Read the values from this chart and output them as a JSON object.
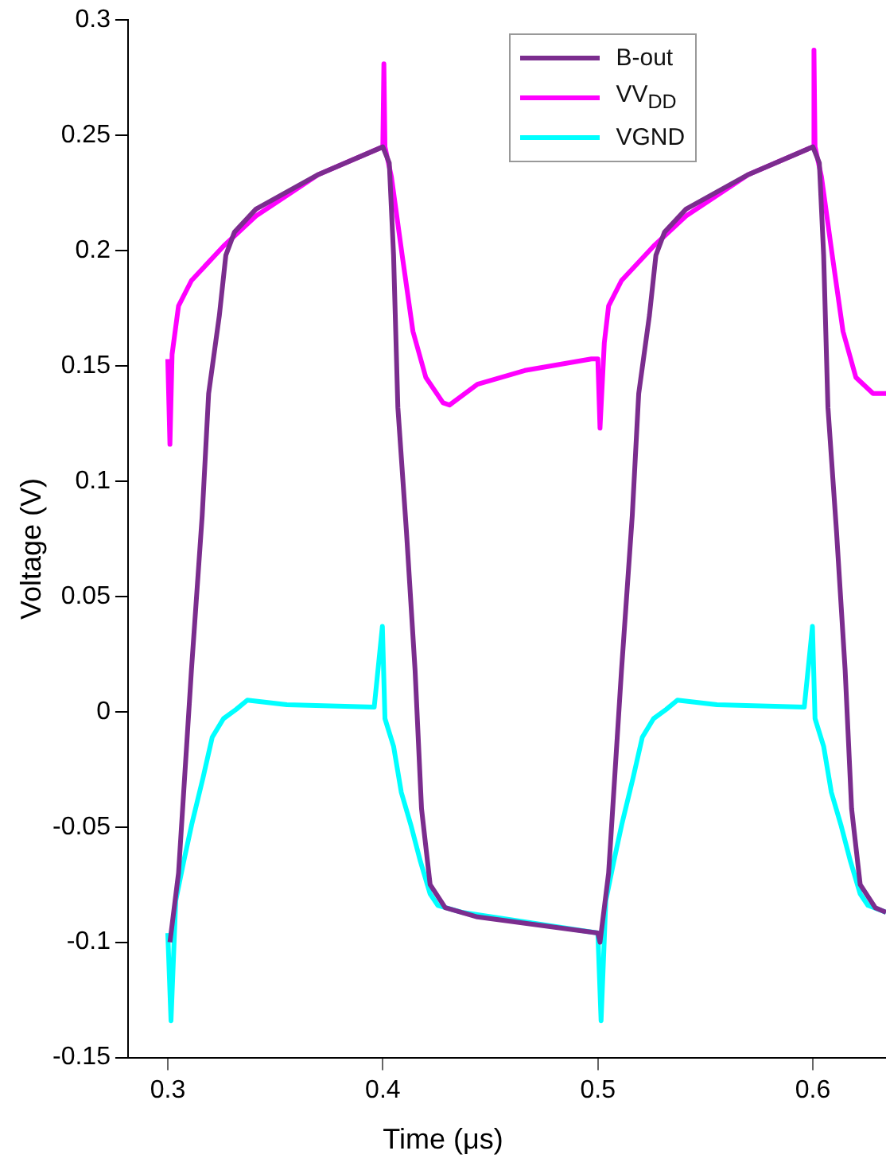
{
  "chart_data": {
    "type": "line",
    "xlabel": "Time (μs)",
    "ylabel": "Voltage (V)",
    "xlim": [
      0.2815,
      0.634
    ],
    "ylim": [
      -0.15,
      0.3
    ],
    "xticks": [
      0.3,
      0.4,
      0.5,
      0.6
    ],
    "yticks": [
      -0.15,
      -0.1,
      -0.05,
      0,
      0.05,
      0.1,
      0.15,
      0.2,
      0.25,
      0.3
    ],
    "grid": false,
    "legend": "top",
    "marker": "none",
    "line_style": "solid",
    "series": [
      {
        "name": "B-out",
        "color": "#7b2d8e",
        "x": [
          0.301,
          0.305,
          0.311,
          0.316,
          0.319,
          0.324,
          0.327,
          0.331,
          0.341,
          0.37,
          0.4,
          0.403,
          0.405,
          0.407,
          0.411,
          0.415,
          0.418,
          0.422,
          0.429,
          0.444,
          0.5,
          0.501,
          0.505,
          0.511,
          0.516,
          0.519,
          0.524,
          0.527,
          0.531,
          0.541,
          0.57,
          0.6,
          0.603,
          0.605,
          0.607,
          0.611,
          0.615,
          0.618,
          0.622,
          0.629,
          0.634
        ],
        "values": [
          -0.1,
          -0.07,
          0.018,
          0.085,
          0.138,
          0.172,
          0.198,
          0.208,
          0.218,
          0.233,
          0.245,
          0.238,
          0.198,
          0.132,
          0.078,
          0.018,
          -0.042,
          -0.075,
          -0.085,
          -0.089,
          -0.096,
          -0.1,
          -0.07,
          0.018,
          0.085,
          0.138,
          0.172,
          0.198,
          0.208,
          0.218,
          0.233,
          0.245,
          0.238,
          0.198,
          0.132,
          0.078,
          0.018,
          -0.042,
          -0.075,
          -0.085,
          -0.087
        ]
      },
      {
        "name": "VV$_{DD}$",
        "color": "#ff00ff",
        "x": [
          0.3,
          0.301,
          0.302,
          0.305,
          0.311,
          0.326,
          0.341,
          0.37,
          0.4,
          0.4005,
          0.401,
          0.404,
          0.409,
          0.414,
          0.42,
          0.428,
          0.431,
          0.444,
          0.466,
          0.497,
          0.5,
          0.501,
          0.503,
          0.505,
          0.511,
          0.526,
          0.541,
          0.57,
          0.6,
          0.6005,
          0.601,
          0.604,
          0.609,
          0.614,
          0.62,
          0.628,
          0.634
        ],
        "values": [
          0.153,
          0.116,
          0.155,
          0.176,
          0.187,
          0.202,
          0.215,
          0.233,
          0.245,
          0.281,
          0.245,
          0.232,
          0.198,
          0.165,
          0.145,
          0.134,
          0.133,
          0.142,
          0.148,
          0.153,
          0.153,
          0.123,
          0.16,
          0.176,
          0.187,
          0.202,
          0.215,
          0.233,
          0.245,
          0.287,
          0.245,
          0.232,
          0.198,
          0.165,
          0.145,
          0.138,
          0.138
        ]
      },
      {
        "name": "VGND",
        "color": "#00ffff",
        "x": [
          0.3,
          0.3015,
          0.3037,
          0.3074,
          0.3111,
          0.3163,
          0.3207,
          0.3259,
          0.3318,
          0.337,
          0.3554,
          0.396,
          0.3998,
          0.401,
          0.405,
          0.4086,
          0.413,
          0.4175,
          0.422,
          0.4256,
          0.4367,
          0.5,
          0.5015,
          0.5037,
          0.5074,
          0.5111,
          0.5163,
          0.5207,
          0.5259,
          0.5318,
          0.537,
          0.5554,
          0.596,
          0.5998,
          0.601,
          0.605,
          0.6086,
          0.613,
          0.6175,
          0.622,
          0.6256,
          0.634
        ],
        "values": [
          -0.096,
          -0.134,
          -0.082,
          -0.065,
          -0.049,
          -0.029,
          -0.011,
          -0.003,
          0.001,
          0.005,
          0.003,
          0.002,
          0.037,
          -0.003,
          -0.015,
          -0.035,
          -0.049,
          -0.065,
          -0.079,
          -0.084,
          -0.087,
          -0.096,
          -0.134,
          -0.082,
          -0.065,
          -0.049,
          -0.029,
          -0.011,
          -0.003,
          0.001,
          0.005,
          0.003,
          0.002,
          0.037,
          -0.003,
          -0.015,
          -0.035,
          -0.049,
          -0.065,
          -0.079,
          -0.084,
          -0.087
        ]
      }
    ]
  }
}
